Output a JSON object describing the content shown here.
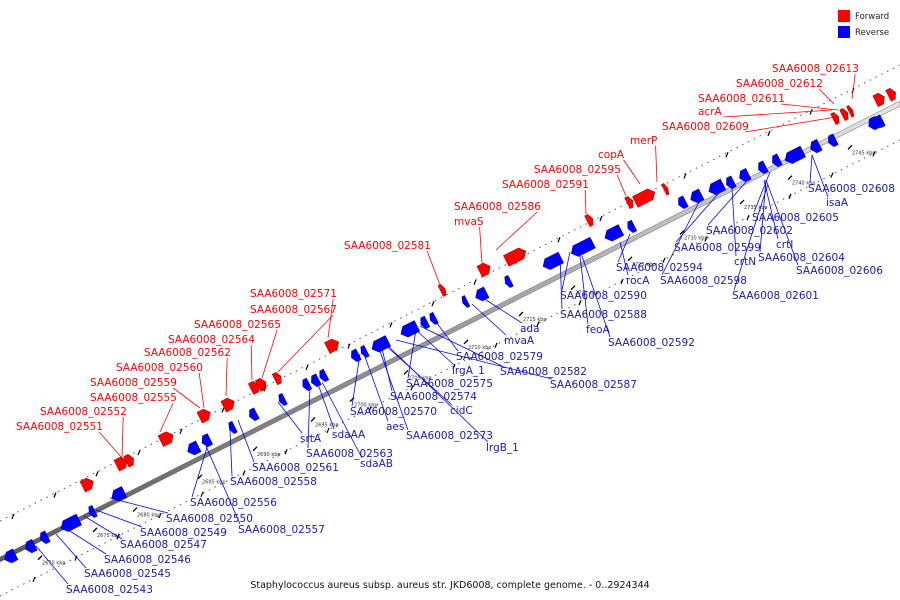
{
  "caption": "Staphylococcus aureus subsp. aureus str. JKD6008, complete genome. - 0..2924344",
  "legend": {
    "forward_label": "Forward",
    "reverse_label": "Reverse",
    "forward_color": "#ff0000",
    "reverse_color": "#0000ff"
  },
  "ticks": [
    "2670 kbp",
    "2675 kbp",
    "2680 kbp",
    "2685 kbp",
    "2690 kbp",
    "2695 kbp",
    "2700 kbp",
    "2705 kbp",
    "2710 kbp",
    "2715 kbp",
    "2720 kbp",
    "2725 kbp",
    "2730 kbp",
    "2735 kbp",
    "2740 kbp",
    "2745 kbp"
  ],
  "forward_labels": [
    "SAA6008_02613",
    "SAA6008_02612",
    "SAA6008_02611",
    "acrA",
    "SAA6008_02609",
    "merP",
    "copA",
    "SAA6008_02595",
    "SAA6008_02591",
    "SAA6008_02586",
    "mvaS",
    "SAA6008_02581",
    "SAA6008_02571",
    "SAA6008_02567",
    "SAA6008_02565",
    "SAA6008_02564",
    "SAA6008_02562",
    "SAA6008_02560",
    "SAA6008_02559",
    "SAA6008_02555",
    "SAA6008_02552",
    "SAA6008_02551"
  ],
  "reverse_labels": [
    "SAA6008_02608",
    "isaA",
    "SAA6008_02605",
    "SAA6008_02602",
    "crtI",
    "SAA6008_02604",
    "SAA6008_02606",
    "SAA6008_02601",
    "crtN",
    "SAA6008_02599",
    "SAA6008_02598",
    "rocA",
    "SAA6008_02594",
    "SAA6008_02590",
    "SAA6008_02588",
    "feoA",
    "SAA6008_02592",
    "ada",
    "mvaA",
    "SAA6008_02579",
    "SAA6008_02582",
    "lrgA_1",
    "SAA6008_02587",
    "SAA6008_02575",
    "SAA6008_02574",
    "cidC",
    "SAA6008_02570",
    "aes",
    "SAA6008_02573",
    "lrgB_1",
    "sdaAA",
    "SAA6008_02563",
    "sdaAB",
    "srtA",
    "SAA6008_02561",
    "SAA6008_02558",
    "SAA6008_02556",
    "SAA6008_02550",
    "SAA6008_02549",
    "SAA6008_02557",
    "SAA6008_02547",
    "SAA6008_02546",
    "SAA6008_02545",
    "SAA6008_02543"
  ]
}
